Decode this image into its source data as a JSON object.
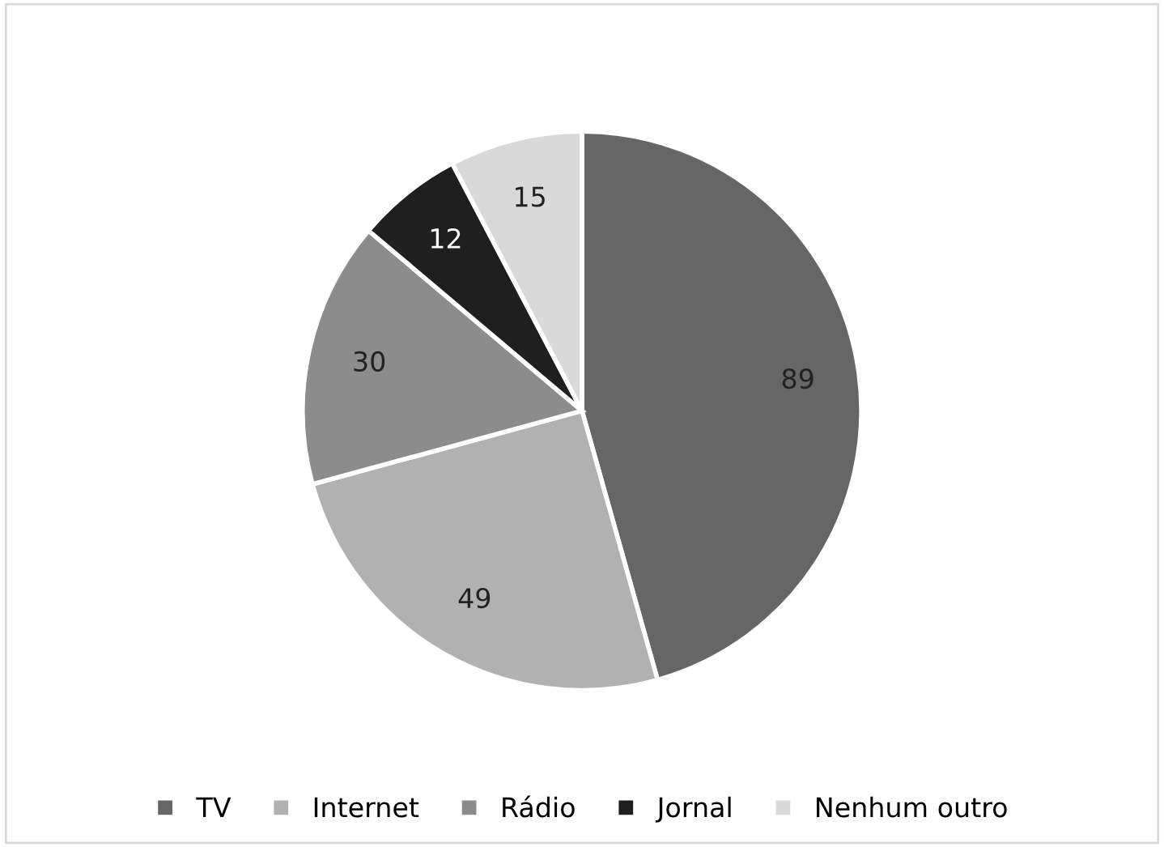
{
  "chart_data": {
    "type": "pie",
    "categories": [
      "TV",
      "Internet",
      "Rádio",
      "Jornal",
      "Nenhum outro"
    ],
    "values": [
      89,
      49,
      30,
      12,
      15
    ],
    "colors": [
      "#666666",
      "#b1b1b1",
      "#8c8c8c",
      "#1f1f1f",
      "#d9d9d9"
    ],
    "data_labels": true,
    "legend": "bottom"
  }
}
